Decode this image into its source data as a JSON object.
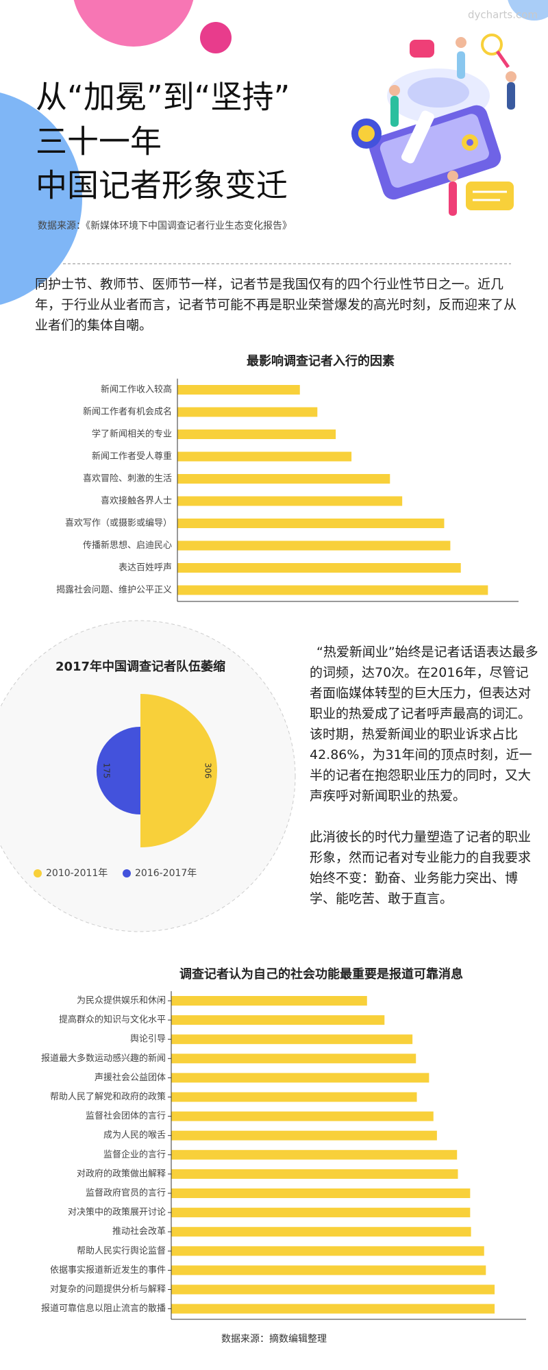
{
  "header": {
    "logo": "dycharts.com",
    "title_lines": [
      "从“加冕”到“坚持”",
      "三十一年",
      "中国记者形象变迁"
    ],
    "source": "数据来源：《新媒体环境下中国调查记者行业生态变化报告》"
  },
  "intro": "同护士节、教师节、医师节一样，记者节是我国仅有的四个行业性节日之一。近几年，于行业从业者而言，记者节可能不再是职业荣誉爆发的高光时刻，反而迎来了从业者们的集体自嘲。",
  "chart_data": [
    {
      "type": "bar",
      "orientation": "horizontal",
      "title": "最影响调查记者入行的因素",
      "color": "#f8d03a",
      "categories": [
        "新闻工作收入较高",
        "新闻工作者有机会成名",
        "学了新闻相关的专业",
        "新闻工作者受人尊重",
        "喜欢冒险、刺激的生活",
        "喜欢接触各界人士",
        "喜欢写作（或摄影或编导）",
        "传播新思想、启迪民心",
        "表达百姓呼声",
        "揭露社会问题、维护公平正义"
      ],
      "values": [
        140,
        160,
        181,
        199,
        243,
        257,
        305,
        312,
        324,
        355
      ],
      "xlim": [
        0,
        390
      ]
    },
    {
      "type": "rose",
      "title": "2017年中国调查记者队伍萎缩",
      "categories": [
        "2010-2011年",
        "2016-2017年"
      ],
      "values": [
        306,
        175
      ],
      "colors": [
        "#f8d03a",
        "#4352dc"
      ]
    },
    {
      "type": "bar",
      "orientation": "horizontal",
      "title": "调查记者认为自己的社会功能最重要是报道可靠消息",
      "color": "#f8d03a",
      "categories": [
        "为民众提供娱乐和休闲",
        "提高群众的知识与文化水平",
        "舆论引导",
        "报道最大多数运动感兴趣的新闻",
        "声援社会公益团体",
        "帮助人民了解党和政府的政策",
        "监督社会团体的言行",
        "成为人民的喉舌",
        "监督企业的言行",
        "对政府的政策做出解释",
        "监督政府官员的言行",
        "对决策中的政策展开讨论",
        "推动社会改革",
        "帮助人民实行舆论监督",
        "依据事实报道新近发生的事件",
        "对复杂的问题提供分析与解释",
        "报道可靠信息以阻止流言的散播"
      ],
      "values": [
        224,
        244,
        276,
        280,
        295,
        281,
        300,
        304,
        327,
        328,
        342,
        342,
        343,
        358,
        360,
        370,
        370
      ],
      "xlim": [
        0,
        406
      ]
    }
  ],
  "side_text": [
    "“热爱新闻业”始终是记者话语表达最多的词频，达70次。在2016年，尽管记者面临媒体转型的巨大压力，但表达对职业的热爱成了记者呼声最高的词汇。该时期，热爱新闻业的职业诉求占比42.86%，为31年间的顶点时刻，近一半的记者在抱怨职业压力的同时，又大声疾呼对新闻职业的热爱。",
    "此消彼长的时代力量塑造了记者的职业形象，然而记者对专业能力的自我要求始终不变：勤奋、业务能力突出、博学、能吃苦、敢于直言。"
  ],
  "footer": "数据来源：摘数编辑整理"
}
